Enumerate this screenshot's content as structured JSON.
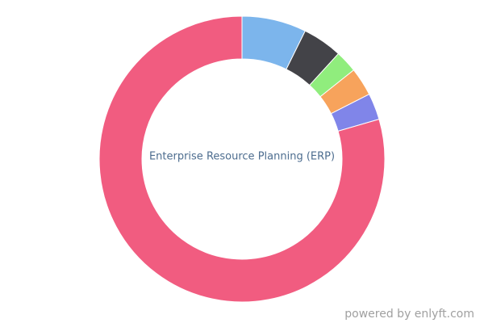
{
  "chart_data": {
    "type": "pie",
    "center_label": "Enterprise Resource Planning (ERP)",
    "values": [
      7.3,
      4.5,
      2.5,
      3.2,
      3.0,
      79.5
    ],
    "colors": [
      "#7cb5ec",
      "#434348",
      "#90ed7d",
      "#f7a35c",
      "#8085e9",
      "#f15c80"
    ]
  },
  "footer": {
    "credit": "powered by enlyft.com"
  }
}
